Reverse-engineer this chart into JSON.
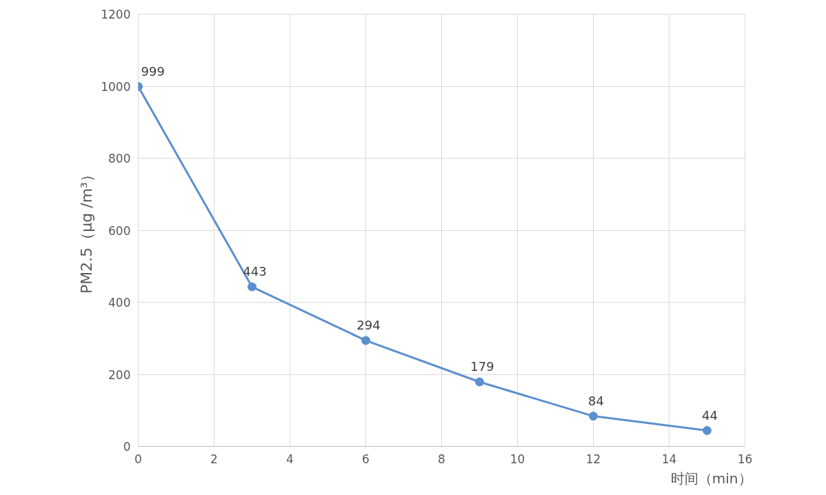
{
  "chart_data": {
    "type": "line",
    "xlabel": "时间（min）",
    "ylabel": "PM2.5（μg /m³）",
    "x": [
      0,
      3,
      6,
      9,
      12,
      15
    ],
    "series": [
      {
        "color": "#5b8fcf",
        "values": [
          999,
          443,
          294,
          179,
          84,
          44
        ]
      }
    ],
    "xlim": [
      0,
      16
    ],
    "xticks": [
      0,
      2,
      4,
      6,
      8,
      10,
      12,
      14,
      16
    ],
    "ylim": [
      0,
      1200
    ],
    "yticks": [
      0,
      200,
      400,
      600,
      800,
      1000,
      1200
    ],
    "grid": true,
    "marker": "circle",
    "line_style": "solid",
    "data_labels": true
  }
}
